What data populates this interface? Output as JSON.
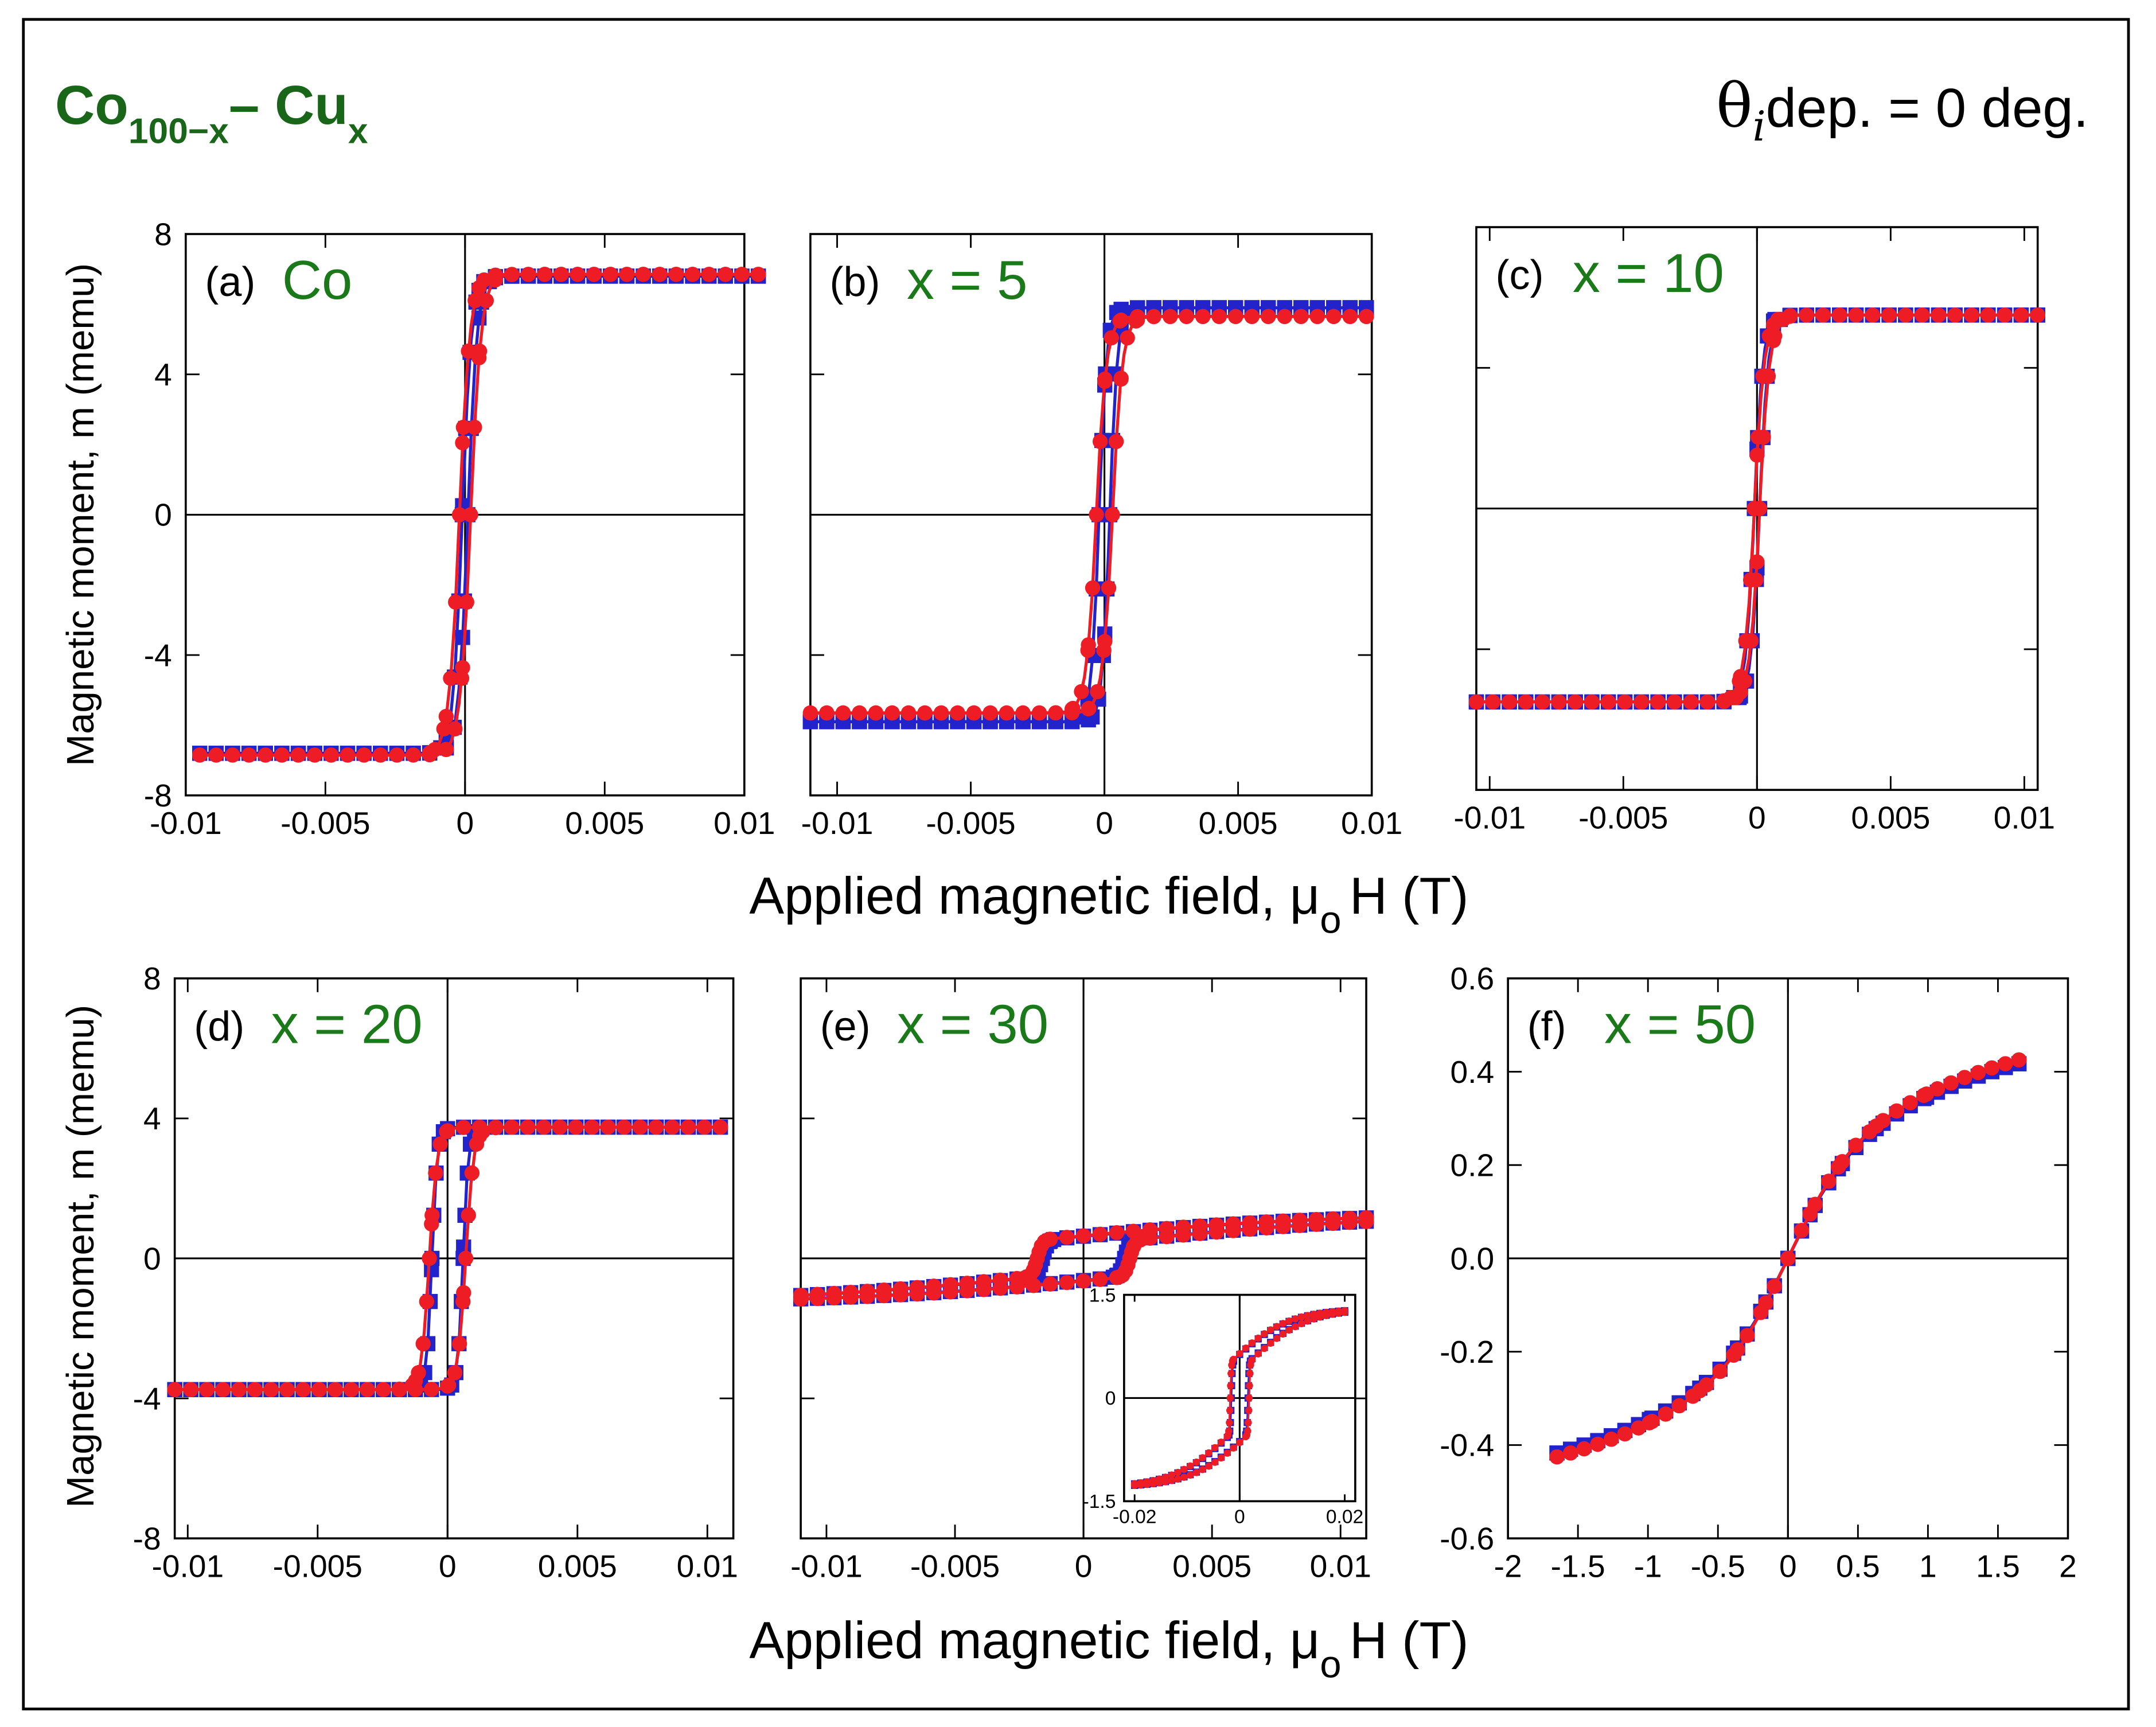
{
  "header": {
    "alloy_base": "Co",
    "alloy_sub1": "100−x",
    "alloy_dash": "– Cu",
    "alloy_sub2": "x",
    "theta_symbol": "θ",
    "theta_sub": "i",
    "theta_text": "dep. = 0 deg."
  },
  "common": {
    "ylabel": "Magnetic moment,  m (memu)",
    "xlabel_main": "Applied magnetic field, μ",
    "xlabel_sub": "o",
    "xlabel_end": "H (T)"
  },
  "colors": {
    "series1": "#2323cc",
    "series2": "#ee1c25",
    "panel_label": "#1a7a1a",
    "header_green": "#196619",
    "axis": "#000000"
  },
  "chart_data": [
    {
      "id": "a",
      "type": "line",
      "tag": "(a)",
      "label": "Co",
      "xlim": [
        -0.01,
        0.01
      ],
      "ylim": [
        -8,
        8
      ],
      "xticks": [
        -0.01,
        -0.005,
        0,
        0.005,
        0.01
      ],
      "xtick_labels": [
        "-0.01",
        "-0.005",
        "0",
        "0.005",
        "0.01"
      ],
      "yticks": [
        -8,
        -4,
        0,
        4,
        8
      ],
      "ytick_labels": [
        "-8",
        "-4",
        "0",
        "4",
        "8"
      ],
      "x_range": [
        -0.0095,
        0.0105
      ],
      "series": [
        {
          "name": "blue",
          "marker": "square",
          "ms": 6.8,
          "hc": 0.0001,
          "w": 0.00035,
          "s": 0.0001,
          "p": 0.05
        },
        {
          "name": "red",
          "marker": "circle",
          "ms": 6.85,
          "hc": 0.0002,
          "w": 0.0004,
          "s": 0.0001,
          "p": 0.05
        }
      ]
    },
    {
      "id": "b",
      "type": "line",
      "tag": "(b)",
      "label": "x = 5",
      "xlim": [
        -0.011,
        0.01
      ],
      "ylim": [
        -8,
        8
      ],
      "xticks": [
        -0.01,
        -0.005,
        0,
        0.005,
        0.01
      ],
      "xtick_labels": [
        "-0.01",
        "-0.005",
        "0",
        "0.005",
        "0.01"
      ],
      "yticks": [
        -8,
        -4,
        0,
        4,
        8
      ],
      "ytick_labels": [],
      "x_range": [
        -0.011,
        0.0098
      ],
      "series": [
        {
          "name": "blue",
          "marker": "square",
          "ms": 5.9,
          "hc": 0.0002,
          "w": 0.0003,
          "s": 0.0001,
          "p": 0.05
        },
        {
          "name": "red",
          "marker": "circle",
          "ms": 5.65,
          "hc": 0.0003,
          "w": 0.0004,
          "s": 0.0001,
          "p": 0.06
        }
      ]
    },
    {
      "id": "c",
      "type": "line",
      "tag": "(c)",
      "label": "x = 10",
      "xlim": [
        -0.0105,
        0.0105
      ],
      "ylim": [
        -8,
        8
      ],
      "xticks": [
        -0.01,
        -0.005,
        0,
        0.005,
        0.01
      ],
      "xtick_labels": [
        "-0.01",
        "-0.005",
        "0",
        "0.005",
        "0.01"
      ],
      "yticks": [
        -8,
        -4,
        0,
        4,
        8
      ],
      "ytick_labels": [],
      "x_range": [
        -0.0105,
        0.0105
      ],
      "series": [
        {
          "name": "blue",
          "marker": "square",
          "ms": 5.5,
          "hc": 0.0001,
          "w": 0.00035,
          "s": 0.0001,
          "p": 0.06
        },
        {
          "name": "red",
          "marker": "circle",
          "ms": 5.5,
          "hc": 0.0001,
          "w": 0.0004,
          "s": 0.0001,
          "p": 0.06
        }
      ]
    },
    {
      "id": "d",
      "type": "line",
      "tag": "(d)",
      "label": "x = 20",
      "xlim": [
        -0.0105,
        0.011
      ],
      "ylim": [
        -8,
        8
      ],
      "xticks": [
        -0.01,
        -0.005,
        0,
        0.005,
        0.01
      ],
      "xtick_labels": [
        "-0.01",
        "-0.005",
        "0",
        "0.005",
        "0.01"
      ],
      "yticks": [
        -8,
        -4,
        0,
        4,
        8
      ],
      "ytick_labels": [
        "-8",
        "-4",
        "0",
        "4",
        "8"
      ],
      "x_range": [
        -0.0105,
        0.0105
      ],
      "series": [
        {
          "name": "blue",
          "marker": "square",
          "ms": 3.75,
          "hc": 0.0006,
          "w": 0.0002,
          "s": 0.0005,
          "p": 0.04
        },
        {
          "name": "red",
          "marker": "circle",
          "ms": 3.75,
          "hc": 0.0007,
          "w": 0.0003,
          "s": 0.0007,
          "p": 0.04
        }
      ]
    },
    {
      "id": "e",
      "type": "line",
      "tag": "(e)",
      "label": "x = 30",
      "xlim": [
        -0.011,
        0.011
      ],
      "ylim": [
        -8,
        8
      ],
      "xticks": [
        -0.01,
        -0.005,
        0,
        0.005,
        0.01
      ],
      "xtick_labels": [
        "-0.01",
        "-0.005",
        "0",
        "0.005",
        "0.01"
      ],
      "yticks": [
        -8,
        -4,
        0,
        4,
        8
      ],
      "ytick_labels": [],
      "x_range": [
        -0.011,
        0.011
      ],
      "series": [
        {
          "name": "blue",
          "marker": "square",
          "ms": 1.3,
          "hc": 0.0016,
          "w": 0.0002,
          "s": 0.011,
          "p": 0.6
        },
        {
          "name": "red",
          "marker": "circle",
          "ms": 1.3,
          "hc": 0.0018,
          "w": 0.0002,
          "s": 0.011,
          "p": 0.6
        }
      ],
      "inset": {
        "xlim": [
          -0.022,
          0.022
        ],
        "ylim": [
          -1.5,
          1.5
        ],
        "xticks": [
          -0.02,
          0,
          0.02
        ],
        "xtick_labels": [
          "-0.02",
          "0",
          "0.02"
        ],
        "yticks": [
          -1.5,
          0,
          1.5
        ],
        "ytick_labels": [
          "-1.5",
          "0",
          "1.5"
        ]
      }
    },
    {
      "id": "f",
      "type": "line",
      "tag": "(f)",
      "label": "x = 50",
      "xlim": [
        -2,
        2
      ],
      "ylim": [
        -0.6,
        0.6
      ],
      "xticks": [
        -2,
        -1.5,
        -1,
        -0.5,
        0,
        0.5,
        1,
        1.5,
        2
      ],
      "xtick_labels": [
        "-2",
        "-1.5",
        "-1",
        "-0.5",
        "0",
        "0.5",
        "1",
        "1.5",
        "2"
      ],
      "yticks": [
        -0.6,
        -0.4,
        -0.2,
        0,
        0.2,
        0.4,
        0.6
      ],
      "ytick_labels": [
        "-0.6",
        "-0.4",
        "-0.2",
        "0.0",
        "0.2",
        "0.4",
        "0.6"
      ],
      "x_range": [
        -1.65,
        1.65
      ],
      "series": [
        {
          "name": "blue",
          "marker": "square",
          "ms": 0.5,
          "hc": 0,
          "w": 0.45,
          "s": 1.8,
          "p": 0.6
        },
        {
          "name": "red",
          "marker": "circle",
          "ms": 0.51,
          "hc": 0,
          "w": 0.45,
          "s": 1.8,
          "p": 0.6
        }
      ]
    }
  ]
}
